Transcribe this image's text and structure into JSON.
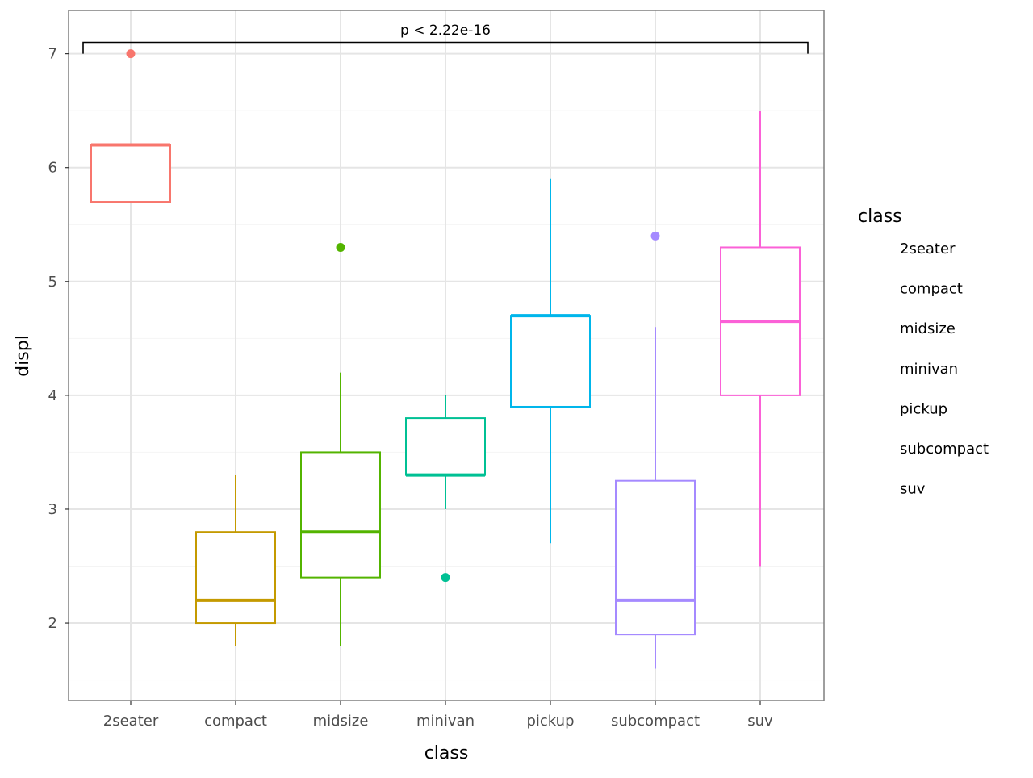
{
  "chart_data": {
    "type": "box",
    "xlabel": "class",
    "ylabel": "displ",
    "categories": [
      "2seater",
      "compact",
      "midsize",
      "minivan",
      "pickup",
      "subcompact",
      "suv"
    ],
    "colors": [
      "#F8766D",
      "#C49A00",
      "#53B400",
      "#00C094",
      "#00B6EB",
      "#A58AFF",
      "#FB61D7"
    ],
    "boxes": [
      {
        "category": "2seater",
        "whisker_low": 5.7,
        "q1": 5.7,
        "median": 6.2,
        "q3": 6.2,
        "whisker_high": 6.2,
        "outliers": [
          7.0
        ]
      },
      {
        "category": "compact",
        "whisker_low": 1.8,
        "q1": 2.0,
        "median": 2.2,
        "q3": 2.8,
        "whisker_high": 3.3,
        "outliers": []
      },
      {
        "category": "midsize",
        "whisker_low": 1.8,
        "q1": 2.4,
        "median": 2.8,
        "q3": 3.5,
        "whisker_high": 4.2,
        "outliers": [
          5.3
        ]
      },
      {
        "category": "minivan",
        "whisker_low": 3.0,
        "q1": 3.3,
        "median": 3.3,
        "q3": 3.8,
        "whisker_high": 4.0,
        "outliers": [
          2.4
        ]
      },
      {
        "category": "pickup",
        "whisker_low": 2.7,
        "q1": 3.9,
        "median": 4.7,
        "q3": 4.7,
        "whisker_high": 5.9,
        "outliers": []
      },
      {
        "category": "subcompact",
        "whisker_low": 1.6,
        "q1": 1.9,
        "median": 2.2,
        "q3": 3.25,
        "whisker_high": 4.6,
        "outliers": [
          5.4
        ]
      },
      {
        "category": "suv",
        "whisker_low": 2.5,
        "q1": 4.0,
        "median": 4.65,
        "q3": 5.3,
        "whisker_high": 6.5,
        "outliers": []
      }
    ],
    "yticks": [
      2,
      3,
      4,
      5,
      6,
      7
    ],
    "ylim": [
      1.32,
      7.38
    ],
    "grid": true,
    "annotation": {
      "text": "p < 2.22e-16",
      "y_bracket": 7.1,
      "y_tick_end": 7.0,
      "from": "2seater",
      "to": "suv"
    },
    "legend": {
      "title": "class",
      "position": "right",
      "entries": [
        "2seater",
        "compact",
        "midsize",
        "minivan",
        "pickup",
        "subcompact",
        "suv"
      ]
    }
  }
}
